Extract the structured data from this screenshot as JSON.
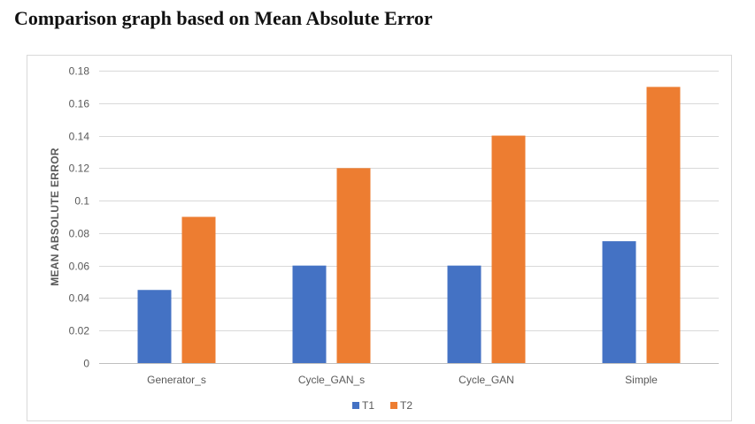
{
  "heading": "Comparison graph based on Mean Absolute Error",
  "colors": {
    "T1": "#4472c4",
    "T2": "#ed7d31",
    "grid": "#d9d9d9",
    "text": "#595959"
  },
  "chart_data": {
    "type": "bar",
    "title": "",
    "xlabel": "",
    "ylabel": "MEAN ABSOLUTE ERROR",
    "categories": [
      "Generator_s",
      "Cycle_GAN_s",
      "Cycle_GAN",
      "Simple"
    ],
    "series": [
      {
        "name": "T1",
        "values": [
          0.045,
          0.06,
          0.06,
          0.075
        ]
      },
      {
        "name": "T2",
        "values": [
          0.09,
          0.12,
          0.14,
          0.17
        ]
      }
    ],
    "ylim": [
      0,
      0.18
    ],
    "yticks": [
      "0",
      "0.02",
      "0.04",
      "0.06",
      "0.08",
      "0.1",
      "0.12",
      "0.14",
      "0.16",
      "0.18"
    ],
    "grid": true,
    "legend_position": "bottom"
  }
}
